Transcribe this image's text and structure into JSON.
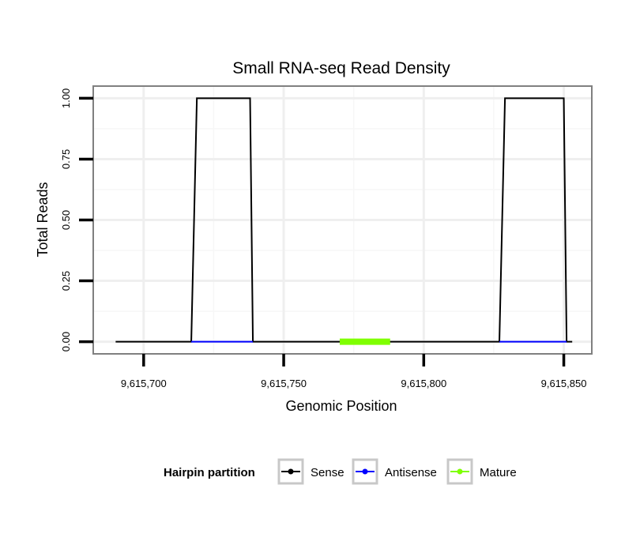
{
  "chart_data": {
    "type": "line",
    "title": "Small RNA-seq Read Density",
    "xlabel": "Genomic Position",
    "ylabel": "Total Reads",
    "xlim": [
      9615682,
      9615860
    ],
    "ylim": [
      -0.05,
      1.05
    ],
    "x_ticks": [
      9615700,
      9615750,
      9615800,
      9615850
    ],
    "x_tick_labels": [
      "9,615,700",
      "9,615,750",
      "9,615,800",
      "9,615,850"
    ],
    "y_ticks": [
      0,
      0.25,
      0.5,
      0.75,
      1.0
    ],
    "y_tick_labels": [
      "0.00",
      "0.25",
      "0.50",
      "0.75",
      "1.00"
    ],
    "grid": true,
    "legend_position": "bottom",
    "legend": {
      "title": "Hairpin partition",
      "entries": [
        "Sense",
        "Antisense",
        "Mature"
      ]
    },
    "series": [
      {
        "name": "Sense",
        "color": "#000000",
        "x": [
          9615690,
          9615717,
          9615719,
          9615738,
          9615739,
          9615827,
          9615829,
          9615850,
          9615851,
          9615853
        ],
        "y": [
          0,
          0,
          1,
          1,
          0,
          0,
          1,
          1,
          0,
          0
        ]
      },
      {
        "name": "Antisense",
        "color": "#0000ff",
        "x": [
          9615717,
          9615739,
          null,
          9615827,
          9615851
        ],
        "y": [
          0,
          0,
          null,
          0,
          0
        ]
      },
      {
        "name": "Mature",
        "color": "#7fff00",
        "x": [
          9615770,
          9615788
        ],
        "y": [
          0,
          0
        ]
      }
    ]
  }
}
